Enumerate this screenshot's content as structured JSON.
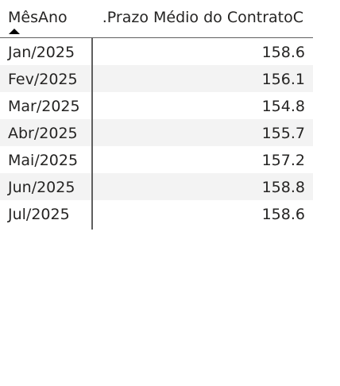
{
  "table": {
    "headers": {
      "month": "MêsAno",
      "value": ".Prazo Médio do ContratoC"
    },
    "rows": [
      {
        "month": "Jan/2025",
        "value": "158.6"
      },
      {
        "month": "Fev/2025",
        "value": "156.1"
      },
      {
        "month": "Mar/2025",
        "value": "154.8"
      },
      {
        "month": "Abr/2025",
        "value": "155.7"
      },
      {
        "month": "Mai/2025",
        "value": "157.2"
      },
      {
        "month": "Jun/2025",
        "value": "158.8"
      },
      {
        "month": "Jul/2025",
        "value": "158.6"
      }
    ],
    "sort": {
      "column": "month",
      "direction": "ascending",
      "icon": "sort-ascending-icon"
    }
  }
}
